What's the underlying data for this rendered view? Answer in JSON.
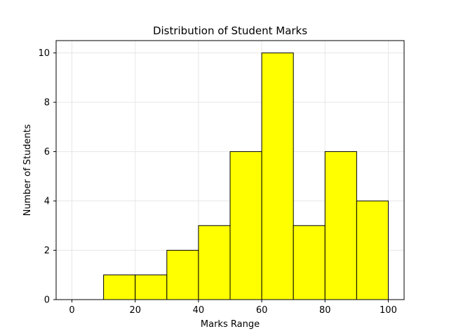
{
  "chart_data": {
    "type": "histogram",
    "title": "Distribution of Student Marks",
    "xlabel": "Marks Range",
    "ylabel": "Number of Students",
    "bins": [
      {
        "start": 0,
        "end": 10,
        "count": 0
      },
      {
        "start": 10,
        "end": 20,
        "count": 1
      },
      {
        "start": 20,
        "end": 30,
        "count": 1
      },
      {
        "start": 30,
        "end": 40,
        "count": 2
      },
      {
        "start": 40,
        "end": 50,
        "count": 3
      },
      {
        "start": 50,
        "end": 60,
        "count": 6
      },
      {
        "start": 60,
        "end": 70,
        "count": 10
      },
      {
        "start": 70,
        "end": 80,
        "count": 3
      },
      {
        "start": 80,
        "end": 90,
        "count": 6
      },
      {
        "start": 90,
        "end": 100,
        "count": 4
      }
    ],
    "xlim": [
      -5,
      105
    ],
    "ylim": [
      0,
      10.5
    ],
    "xticks": [
      0,
      20,
      40,
      60,
      80,
      100
    ],
    "yticks": [
      0,
      2,
      4,
      6,
      8,
      10
    ],
    "grid": true,
    "bar_color": "#ffff00",
    "edge_color": "#000000",
    "grid_color": "#e6e6e6"
  }
}
